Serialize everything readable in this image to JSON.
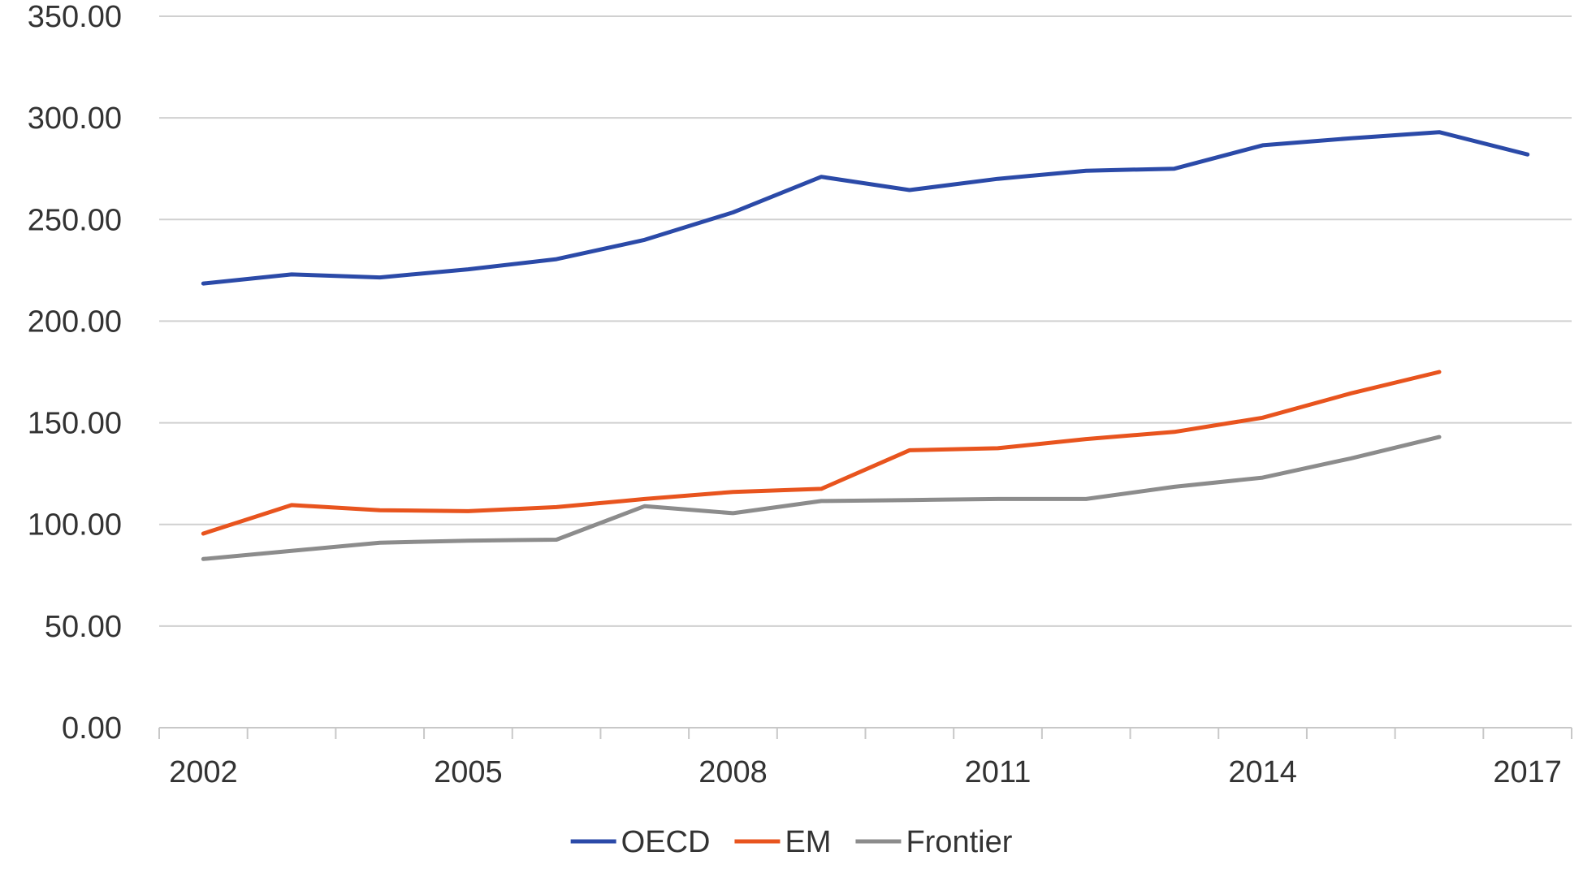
{
  "chart_data": {
    "type": "line",
    "title": "",
    "xlabel": "",
    "ylabel": "",
    "x": [
      2002,
      2003,
      2004,
      2005,
      2006,
      2007,
      2008,
      2009,
      2010,
      2011,
      2012,
      2013,
      2014,
      2015,
      2016,
      2017
    ],
    "x_tick_labels": [
      "2002",
      "2005",
      "2008",
      "2011",
      "2014",
      "2017"
    ],
    "x_tick_values": [
      2002,
      2005,
      2008,
      2011,
      2014,
      2017
    ],
    "y_tick_labels": [
      "0.00",
      "50.00",
      "100.00",
      "150.00",
      "200.00",
      "250.00",
      "300.00",
      "350.00"
    ],
    "y_tick_values": [
      0,
      50,
      100,
      150,
      200,
      250,
      300,
      350
    ],
    "ylim": [
      0,
      350
    ],
    "grid": true,
    "legend_position": "bottom",
    "series": [
      {
        "name": "OECD",
        "color": "#2b4aa8",
        "values": [
          218.5,
          223.0,
          221.5,
          225.5,
          230.5,
          240.0,
          253.5,
          271.0,
          264.5,
          270.0,
          274.0,
          275.0,
          286.5,
          290.0,
          293.0,
          282.0
        ]
      },
      {
        "name": "EM",
        "color": "#e8541e",
        "values": [
          95.5,
          109.5,
          107.0,
          106.5,
          108.5,
          112.5,
          116.0,
          117.5,
          136.5,
          137.5,
          142.0,
          145.5,
          152.5,
          164.5,
          175.0,
          null
        ]
      },
      {
        "name": "Frontier",
        "color": "#8c8c8c",
        "values": [
          83.0,
          87.0,
          91.0,
          92.0,
          92.5,
          109.0,
          105.5,
          111.5,
          112.0,
          112.5,
          112.5,
          118.5,
          123.0,
          132.5,
          143.0,
          null
        ]
      }
    ]
  }
}
